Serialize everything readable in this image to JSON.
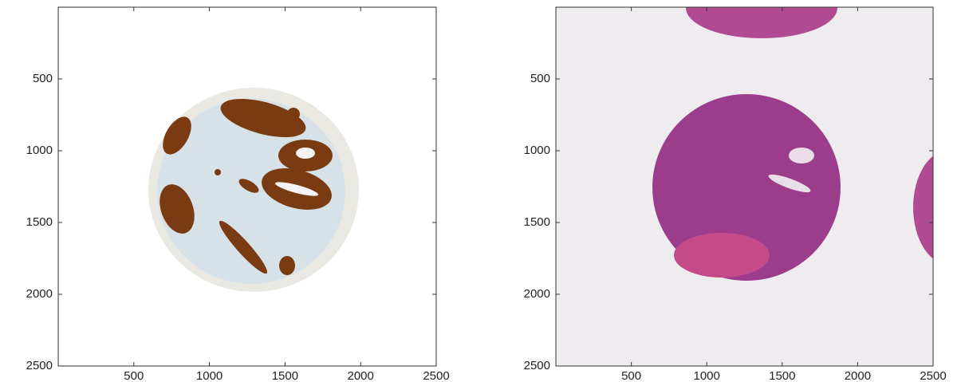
{
  "chart_data": [
    {
      "type": "image",
      "xlim": [
        0,
        2500
      ],
      "ylim": [
        2500,
        0
      ],
      "xticks": [
        500,
        1000,
        1500,
        2000,
        2500
      ],
      "yticks": [
        500,
        1000,
        1500,
        2000,
        2500
      ]
    },
    {
      "type": "image",
      "xlim": [
        0,
        2500
      ],
      "ylim": [
        2500,
        0
      ],
      "xticks": [
        500,
        1000,
        1500,
        2000,
        2500
      ],
      "yticks": [
        500,
        1000,
        1500,
        2000,
        2500
      ]
    }
  ]
}
